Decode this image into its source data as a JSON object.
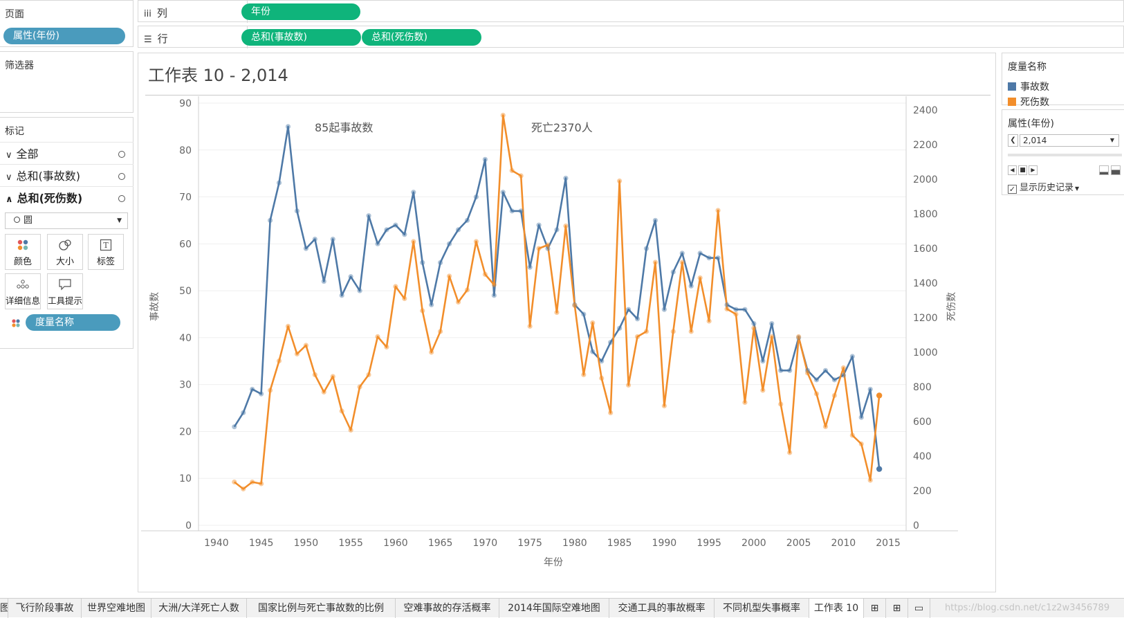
{
  "colors": {
    "blue": "#4e79a7",
    "orange": "#f28e2b",
    "green_pill": "#0fb47b",
    "teal_pill": "#4a9bbd"
  },
  "pages": {
    "title": "页面",
    "pill": "属性(年份)"
  },
  "filters": {
    "title": "筛选器"
  },
  "marks": {
    "title": "标记",
    "rows": [
      {
        "arrow": "∨",
        "label": "全部"
      },
      {
        "arrow": "∨",
        "label": "总和(事故数)"
      },
      {
        "arrow": "∧",
        "label": "总和(死伤数)"
      }
    ],
    "mark_type": "圆",
    "tiles": [
      {
        "icon": "color-dots-icon",
        "label": "颜色"
      },
      {
        "icon": "size-icon",
        "label": "大小"
      },
      {
        "icon": "text-label-icon",
        "label": "标签"
      },
      {
        "icon": "detail-icon",
        "label": "详细信息"
      },
      {
        "icon": "tooltip-icon",
        "label": "工具提示"
      }
    ],
    "measure_pill": "度量名称"
  },
  "shelves": {
    "columns": {
      "label": "列",
      "pills": [
        "年份"
      ]
    },
    "rows": {
      "label": "行",
      "pills": [
        "总和(事故数)",
        "总和(死伤数)"
      ]
    }
  },
  "worksheet": {
    "title": "工作表 10 - 2,014"
  },
  "legend": {
    "title": "度量名称",
    "items": [
      {
        "label": "事故数",
        "color": "#4e79a7"
      },
      {
        "label": "死伤数",
        "color": "#f28e2b"
      }
    ]
  },
  "page_control": {
    "title": "属性(年份)",
    "value": "2,014",
    "history_label": "显示历史记录"
  },
  "tabs": [
    "飞行阶段事故",
    "世界空难地图",
    "大洲/大洋死亡人数",
    "国家比例与死亡事故数的比例",
    "空难事故的存活概率",
    "2014年国际空难地图",
    "交通工具的事故概率",
    "不同机型失事概率",
    "工作表 10"
  ],
  "watermark": "https://blog.csdn.net/c1z2w3456789",
  "chart_data": {
    "type": "line",
    "xlabel": "年份",
    "ylabel": "事故数",
    "y2label": "死伤数",
    "xlim": [
      1938,
      2017
    ],
    "ylim": [
      0,
      90
    ],
    "y2lim": [
      0,
      2440
    ],
    "x_ticks": [
      1940,
      1945,
      1950,
      1955,
      1960,
      1965,
      1970,
      1975,
      1980,
      1985,
      1990,
      1995,
      2000,
      2005,
      2010,
      2015
    ],
    "y_ticks": [
      0,
      10,
      20,
      30,
      40,
      50,
      60,
      70,
      80,
      90
    ],
    "y2_ticks": [
      0,
      200,
      400,
      600,
      800,
      1000,
      1200,
      1400,
      1600,
      1800,
      2000,
      2200,
      2400
    ],
    "annotations": [
      "85起事故数",
      "死亡2370人"
    ],
    "x": [
      1942,
      1943,
      1944,
      1945,
      1946,
      1947,
      1948,
      1949,
      1950,
      1951,
      1952,
      1953,
      1954,
      1955,
      1956,
      1957,
      1958,
      1959,
      1960,
      1961,
      1962,
      1963,
      1964,
      1965,
      1966,
      1967,
      1968,
      1969,
      1970,
      1971,
      1972,
      1973,
      1974,
      1975,
      1976,
      1977,
      1978,
      1979,
      1980,
      1981,
      1982,
      1983,
      1984,
      1985,
      1986,
      1987,
      1988,
      1989,
      1990,
      1991,
      1992,
      1993,
      1994,
      1995,
      1996,
      1997,
      1998,
      1999,
      2000,
      2001,
      2002,
      2003,
      2004,
      2005,
      2006,
      2007,
      2008,
      2009,
      2010,
      2011,
      2012,
      2013,
      2014
    ],
    "series": [
      {
        "name": "事故数",
        "axis": "left",
        "values": [
          21,
          24,
          29,
          28,
          65,
          73,
          85,
          67,
          59,
          61,
          52,
          61,
          49,
          53,
          50,
          66,
          60,
          63,
          64,
          62,
          71,
          56,
          47,
          56,
          60,
          63,
          65,
          70,
          78,
          49,
          71,
          67,
          67,
          55,
          64,
          59,
          63,
          74,
          47,
          45,
          37,
          35,
          39,
          42,
          46,
          44,
          59,
          65,
          46,
          54,
          58,
          51,
          58,
          57,
          57,
          47,
          46,
          46,
          43,
          35,
          43,
          33,
          33,
          40,
          33,
          31,
          33,
          31,
          32,
          36,
          23,
          29,
          12
        ]
      },
      {
        "name": "死伤数",
        "axis": "right",
        "values": [
          250,
          210,
          250,
          240,
          780,
          950,
          1150,
          990,
          1040,
          870,
          770,
          860,
          660,
          550,
          800,
          870,
          1090,
          1030,
          1380,
          1310,
          1640,
          1240,
          1000,
          1120,
          1440,
          1290,
          1360,
          1640,
          1450,
          1390,
          2370,
          2050,
          2020,
          1150,
          1600,
          1620,
          1230,
          1730,
          1270,
          870,
          1170,
          850,
          650,
          1990,
          810,
          1090,
          1120,
          1520,
          690,
          1120,
          1520,
          1120,
          1430,
          1180,
          1820,
          1250,
          1220,
          710,
          1140,
          780,
          1090,
          700,
          420,
          1090,
          880,
          760,
          570,
          750,
          910,
          520,
          470,
          260,
          750
        ]
      }
    ]
  }
}
